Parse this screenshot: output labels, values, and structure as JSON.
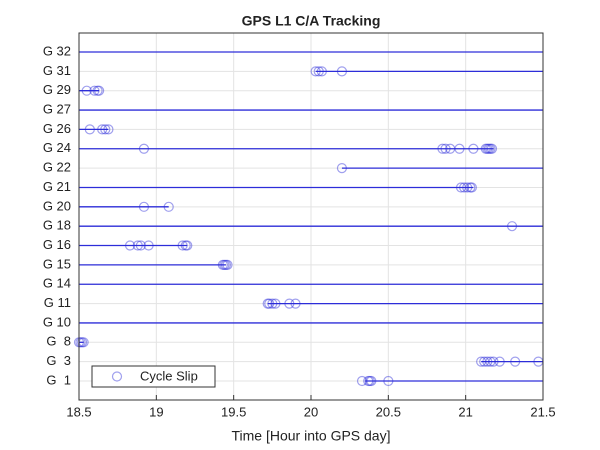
{
  "chart_data": {
    "type": "tracking",
    "title": "GPS L1 C/A Tracking",
    "xlabel": "Time [Hour into GPS day]",
    "xlim": [
      18.5,
      21.5
    ],
    "xticks": [
      18.5,
      19,
      19.5,
      20,
      20.5,
      21,
      21.5
    ],
    "grid": true,
    "color": "#2d2dd9",
    "legend": "lower left",
    "slip_legend": "Cycle Slip",
    "categories": [
      "G  1",
      "G  3",
      "G  8",
      "G 10",
      "G 11",
      "G 14",
      "G 15",
      "G 16",
      "G 18",
      "G 20",
      "G 21",
      "G 22",
      "G 24",
      "G 26",
      "G 27",
      "G 29",
      "G 31",
      "G 32"
    ],
    "track_start": [
      20.35,
      21.1,
      18.5,
      18.5,
      19.72,
      18.5,
      18.5,
      18.5,
      18.5,
      18.5,
      18.5,
      20.2,
      18.5,
      18.5,
      18.5,
      18.5,
      20.03,
      18.5
    ],
    "track_end": [
      21.5,
      21.5,
      18.53,
      21.5,
      21.5,
      21.5,
      19.45,
      19.2,
      21.5,
      19.08,
      21.05,
      21.5,
      21.18,
      18.69,
      21.5,
      18.63,
      21.5,
      21.5
    ],
    "slips": [
      [
        20.33,
        20.37,
        20.38,
        20.39,
        20.5
      ],
      [
        21.1,
        21.12,
        21.14,
        21.16,
        21.18,
        21.22,
        21.32,
        21.47
      ],
      [
        18.5,
        18.51,
        18.52,
        18.53
      ],
      [],
      [
        19.72,
        19.73,
        19.75,
        19.77,
        19.86,
        19.9
      ],
      [],
      [
        19.43,
        19.44,
        19.45,
        19.46
      ],
      [
        18.83,
        18.88,
        18.9,
        18.95,
        19.17,
        19.19,
        19.2
      ],
      [
        21.3
      ],
      [
        18.92,
        19.08
      ],
      [
        20.97,
        20.99,
        21.01,
        21.03,
        21.04
      ],
      [
        20.2
      ],
      [
        18.92,
        20.85,
        20.87,
        20.9,
        20.96,
        21.05,
        21.13,
        21.14,
        21.15,
        21.16,
        21.17
      ],
      [
        18.57,
        18.65,
        18.67,
        18.69
      ],
      [],
      [
        18.55,
        18.6,
        18.62,
        18.63
      ],
      [
        20.03,
        20.05,
        20.07,
        20.2
      ],
      []
    ]
  }
}
